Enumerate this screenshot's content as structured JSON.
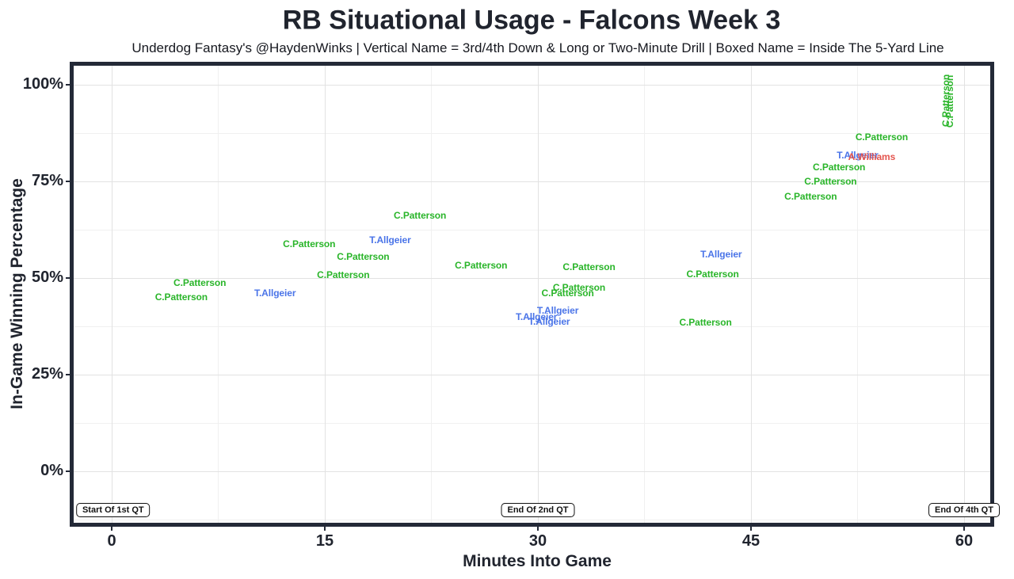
{
  "header": {
    "title": "RB Situational Usage - Falcons Week 3",
    "subtitle": "Underdog Fantasy's @HaydenWinks | Vertical Name = 3rd/4th Down & Long or Two-Minute Drill | Boxed Name = Inside The 5-Yard Line"
  },
  "chart_data": {
    "type": "scatter",
    "title": "RB Situational Usage - Falcons Week 3",
    "subtitle": "Underdog Fantasy's @HaydenWinks | Vertical Name = 3rd/4th Down & Long or Two-Minute Drill | Boxed Name = Inside The 5-Yard Line",
    "xlabel": "Minutes Into Game",
    "ylabel": "In-Game Winning Percentage",
    "xlim": [
      -2.7,
      61.9
    ],
    "ylim": [
      -13.2,
      104.8
    ],
    "x_ticks": [
      0,
      15,
      30,
      45,
      60
    ],
    "x_tick_labels": [
      "0",
      "15",
      "30",
      "45",
      "60"
    ],
    "y_ticks": [
      0,
      25,
      50,
      75,
      100
    ],
    "y_tick_labels": [
      "0%",
      "25%",
      "50%",
      "75%",
      "100%"
    ],
    "x_minor_ticks": [
      7.5,
      22.5,
      37.5,
      52.5
    ],
    "y_minor_ticks": [
      -12.5,
      12.5,
      37.5,
      62.5,
      87.5
    ],
    "grid": "major and minor gridlines, light gray on white, legend off",
    "point_style": "text labels of player names positioned at (minutes, win%)",
    "colors": {
      "C.Patterson": "#2ab52a",
      "T.Allgeier": "#4a74e8",
      "A.Williams": "#e4564f"
    },
    "points": [
      {
        "player": "C.Patterson",
        "x": 4.9,
        "y": 45.0,
        "vertical": false
      },
      {
        "player": "C.Patterson",
        "x": 6.2,
        "y": 48.7,
        "vertical": false
      },
      {
        "player": "T.Allgeier",
        "x": 11.5,
        "y": 46.0,
        "vertical": false
      },
      {
        "player": "C.Patterson",
        "x": 13.9,
        "y": 58.7,
        "vertical": false
      },
      {
        "player": "C.Patterson",
        "x": 16.3,
        "y": 50.7,
        "vertical": false
      },
      {
        "player": "C.Patterson",
        "x": 17.7,
        "y": 55.4,
        "vertical": false
      },
      {
        "player": "T.Allgeier",
        "x": 19.6,
        "y": 59.7,
        "vertical": false
      },
      {
        "player": "C.Patterson",
        "x": 21.7,
        "y": 66.1,
        "vertical": false
      },
      {
        "player": "C.Patterson",
        "x": 26.0,
        "y": 53.2,
        "vertical": false
      },
      {
        "player": "T.Allgeier",
        "x": 29.9,
        "y": 39.9,
        "vertical": false
      },
      {
        "player": "T.Allgeier",
        "x": 30.8,
        "y": 38.6,
        "vertical": false
      },
      {
        "player": "T.Allgeier",
        "x": 31.4,
        "y": 41.5,
        "vertical": false
      },
      {
        "player": "C.Patterson",
        "x": 32.1,
        "y": 46.0,
        "vertical": false
      },
      {
        "player": "C.Patterson",
        "x": 32.9,
        "y": 47.4,
        "vertical": false
      },
      {
        "player": "C.Patterson",
        "x": 33.6,
        "y": 52.8,
        "vertical": false
      },
      {
        "player": "C.Patterson",
        "x": 41.8,
        "y": 38.4,
        "vertical": false
      },
      {
        "player": "C.Patterson",
        "x": 42.3,
        "y": 50.9,
        "vertical": false
      },
      {
        "player": "T.Allgeier",
        "x": 42.9,
        "y": 56.0,
        "vertical": false
      },
      {
        "player": "C.Patterson",
        "x": 49.2,
        "y": 71.0,
        "vertical": false
      },
      {
        "player": "C.Patterson",
        "x": 50.6,
        "y": 74.9,
        "vertical": false
      },
      {
        "player": "C.Patterson",
        "x": 51.2,
        "y": 78.6,
        "vertical": false
      },
      {
        "player": "T.Allgeier",
        "x": 52.5,
        "y": 81.7,
        "vertical": false
      },
      {
        "player": "A.Williams",
        "x": 53.5,
        "y": 81.2,
        "vertical": false
      },
      {
        "player": "C.Patterson",
        "x": 54.2,
        "y": 86.4,
        "vertical": false
      },
      {
        "player": "C.Patterson",
        "x": 58.7,
        "y": 95.8,
        "vertical": true
      },
      {
        "player": "C.Patterson",
        "x": 59.0,
        "y": 95.6,
        "vertical": true
      }
    ],
    "annotations": [
      {
        "label": "Start Of 1st QT",
        "x": 0.1,
        "y": -10.1
      },
      {
        "label": "End Of 2nd QT",
        "x": 30.0,
        "y": -10.1
      },
      {
        "label": "End Of 4th QT",
        "x": 60.0,
        "y": -10.1
      }
    ]
  }
}
